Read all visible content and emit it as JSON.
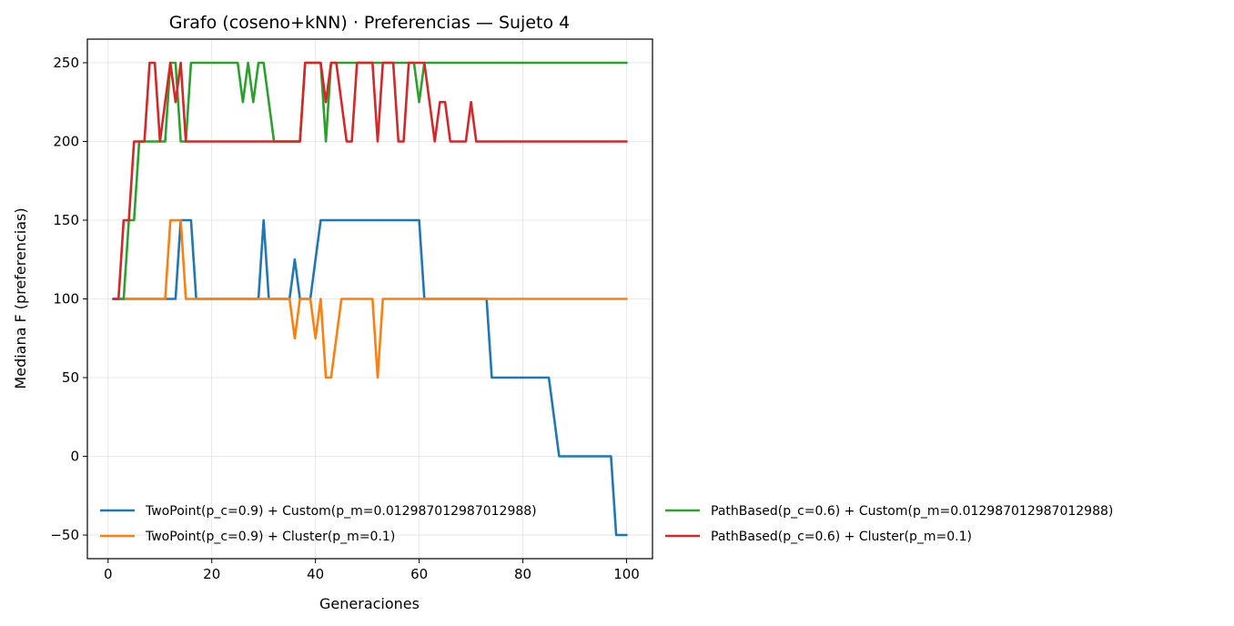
{
  "chart_data": {
    "type": "line",
    "title": "Grafo (coseno+kNN) · Preferencias — Sujeto 4",
    "xlabel": "Generaciones",
    "ylabel": "Mediana F (preferencias)",
    "xlim": [
      -4,
      105
    ],
    "ylim": [
      -65,
      265
    ],
    "xticks": [
      0,
      20,
      40,
      60,
      80,
      100
    ],
    "yticks": [
      -50,
      0,
      50,
      100,
      150,
      200,
      250
    ],
    "grid": true,
    "legend_placement": "bottom, two columns",
    "series": [
      {
        "name": "TwoPoint(p_c=0.9) + Custom(p_m=0.012987012987012988)",
        "color": "#1f77b4",
        "values": [
          100,
          100,
          100,
          100,
          100,
          100,
          100,
          100,
          100,
          100,
          100,
          100,
          100,
          150,
          150,
          150,
          100,
          100,
          100,
          100,
          100,
          100,
          100,
          100,
          100,
          100,
          100,
          100,
          100,
          150,
          100,
          100,
          100,
          100,
          100,
          125,
          100,
          100,
          100,
          125,
          150,
          150,
          150,
          150,
          150,
          150,
          150,
          150,
          150,
          150,
          150,
          150,
          150,
          150,
          150,
          150,
          150,
          150,
          150,
          150,
          100,
          100,
          100,
          100,
          100,
          100,
          100,
          100,
          100,
          100,
          100,
          100,
          100,
          50,
          50,
          50,
          50,
          50,
          50,
          50,
          50,
          50,
          50,
          50,
          50,
          25,
          0,
          0,
          0,
          0,
          0,
          0,
          0,
          0,
          0,
          0,
          0,
          -50,
          -50,
          -50
        ]
      },
      {
        "name": "TwoPoint(p_c=0.9) + Cluster(p_m=0.1)",
        "color": "#ff7f0e",
        "values": [
          100,
          100,
          100,
          100,
          100,
          100,
          100,
          100,
          100,
          100,
          100,
          150,
          150,
          150,
          100,
          100,
          100,
          100,
          100,
          100,
          100,
          100,
          100,
          100,
          100,
          100,
          100,
          100,
          100,
          100,
          100,
          100,
          100,
          100,
          100,
          75,
          100,
          100,
          100,
          75,
          100,
          50,
          50,
          75,
          100,
          100,
          100,
          100,
          100,
          100,
          100,
          50,
          100,
          100,
          100,
          100,
          100,
          100,
          100,
          100,
          100,
          100,
          100,
          100,
          100,
          100,
          100,
          100,
          100,
          100,
          100,
          100,
          100,
          100,
          100,
          100,
          100,
          100,
          100,
          100,
          100,
          100,
          100,
          100,
          100,
          100,
          100,
          100,
          100,
          100,
          100,
          100,
          100,
          100,
          100,
          100,
          100,
          100,
          100,
          100
        ]
      },
      {
        "name": "PathBased(p_c=0.6) + Custom(p_m=0.012987012987012988)",
        "color": "#2ca02c",
        "values": [
          100,
          100,
          100,
          150,
          150,
          200,
          200,
          200,
          200,
          200,
          200,
          250,
          250,
          200,
          200,
          250,
          250,
          250,
          250,
          250,
          250,
          250,
          250,
          250,
          250,
          225,
          250,
          225,
          250,
          250,
          225,
          200,
          200,
          200,
          200,
          200,
          200,
          250,
          250,
          250,
          250,
          200,
          250,
          250,
          250,
          250,
          250,
          250,
          250,
          250,
          250,
          250,
          250,
          250,
          250,
          250,
          250,
          250,
          250,
          225,
          250,
          250,
          250,
          250,
          250,
          250,
          250,
          250,
          250,
          250,
          250,
          250,
          250,
          250,
          250,
          250,
          250,
          250,
          250,
          250,
          250,
          250,
          250,
          250,
          250,
          250,
          250,
          250,
          250,
          250,
          250,
          250,
          250,
          250,
          250,
          250,
          250,
          250,
          250,
          250
        ]
      },
      {
        "name": "PathBased(p_c=0.6) + Cluster(p_m=0.1)",
        "color": "#d62728",
        "values": [
          100,
          100,
          150,
          150,
          200,
          200,
          200,
          250,
          250,
          200,
          225,
          250,
          225,
          250,
          200,
          200,
          200,
          200,
          200,
          200,
          200,
          200,
          200,
          200,
          200,
          200,
          200,
          200,
          200,
          200,
          200,
          200,
          200,
          200,
          200,
          200,
          200,
          250,
          250,
          250,
          250,
          225,
          250,
          250,
          225,
          200,
          200,
          250,
          250,
          250,
          250,
          200,
          250,
          250,
          250,
          200,
          200,
          250,
          250,
          250,
          250,
          225,
          200,
          225,
          225,
          200,
          200,
          200,
          200,
          225,
          200,
          200,
          200,
          200,
          200,
          200,
          200,
          200,
          200,
          200,
          200,
          200,
          200,
          200,
          200,
          200,
          200,
          200,
          200,
          200,
          200,
          200,
          200,
          200,
          200,
          200,
          200,
          200,
          200,
          200
        ]
      }
    ]
  }
}
